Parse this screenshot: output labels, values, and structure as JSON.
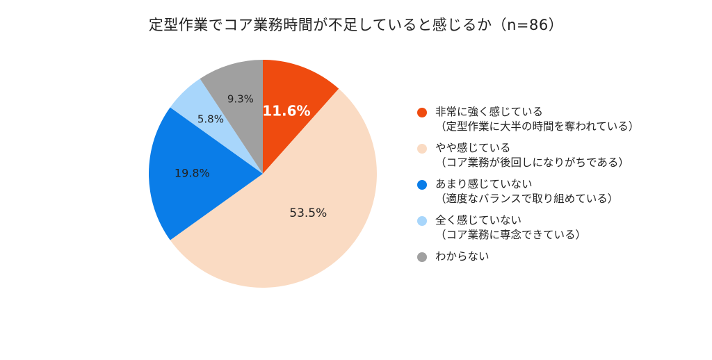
{
  "chart_data": {
    "type": "pie",
    "title": "定型作業でコア業務時間が不足していると感じるか（n=86）",
    "unit": "%",
    "slices": [
      {
        "label": "非常に強く感じている",
        "sublabel": "（定型作業に大半の時間を奪われている）",
        "value": 11.6,
        "value_label": "11.6%",
        "color": "#ef4b0f"
      },
      {
        "label": "やや感じている",
        "sublabel": "（コア業務が後回しになりがちである）",
        "value": 53.5,
        "value_label": "53.5%",
        "color": "#fadbc3"
      },
      {
        "label": "あまり感じていない",
        "sublabel": "（適度なバランスで取り組めている）",
        "value": 19.8,
        "value_label": "19.8%",
        "color": "#0a7de8"
      },
      {
        "label": "全く感じていない",
        "sublabel": "（コア業務に専念できている）",
        "value": 5.8,
        "value_label": "5.8%",
        "color": "#a8d6fb"
      },
      {
        "label": "わからない",
        "sublabel": "",
        "value": 9.3,
        "value_label": "9.3%",
        "color": "#a0a0a0"
      }
    ],
    "start_angle_deg": 0,
    "direction": "clockwise",
    "legend_position": "right"
  }
}
